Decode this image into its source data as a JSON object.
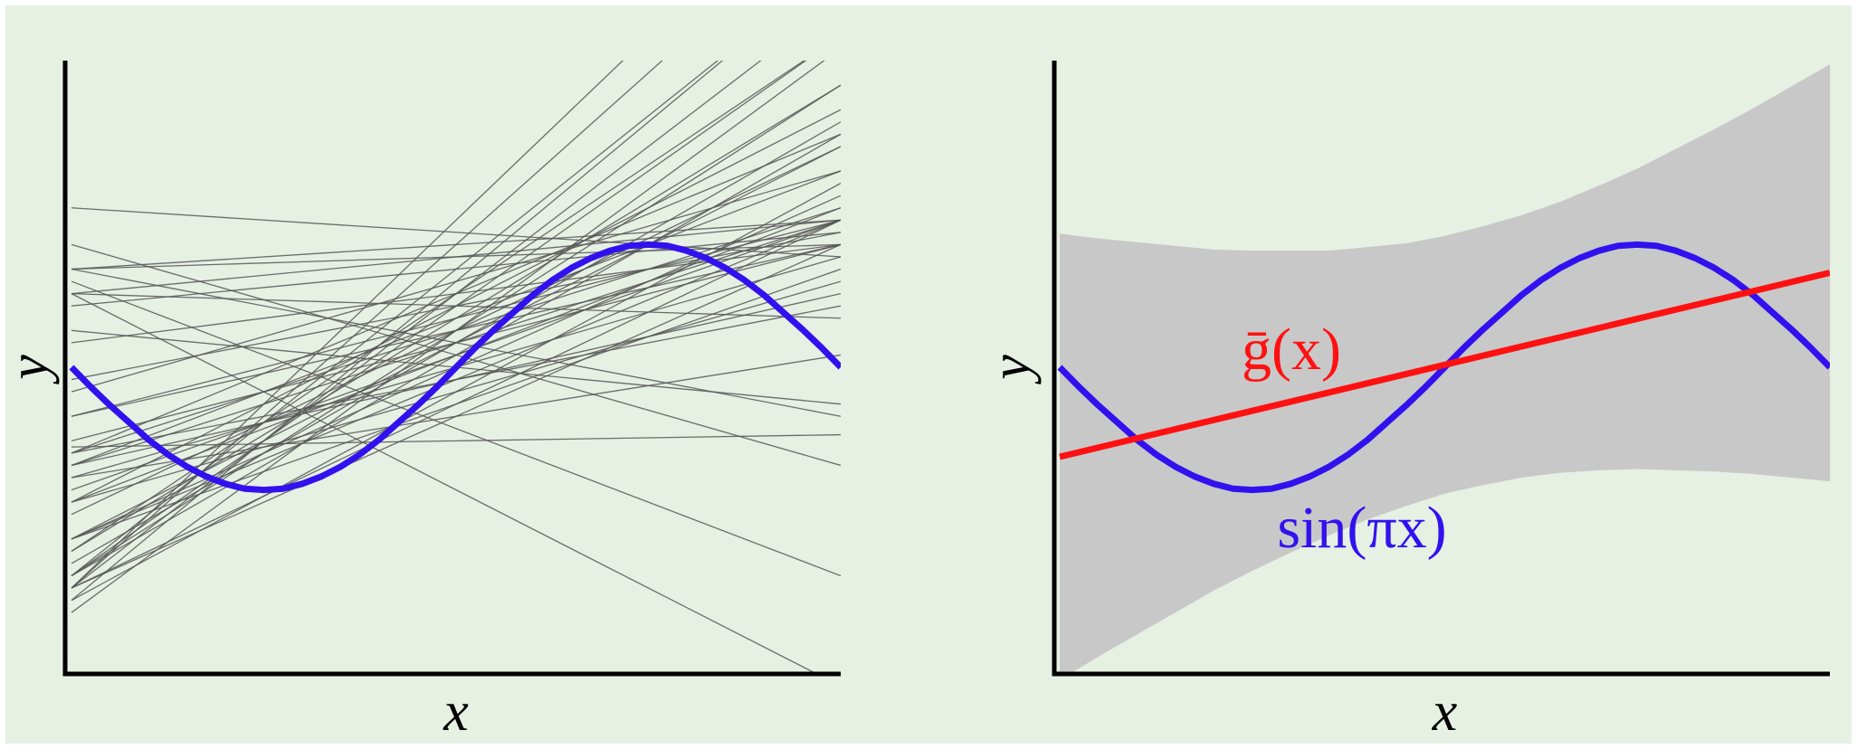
{
  "chart_data": [
    {
      "type": "line",
      "x_label": "x",
      "y_label": "y",
      "xlim": [
        -1,
        1
      ],
      "ylim": [
        -2.5,
        2.5
      ],
      "x": [
        -1,
        -0.95,
        -0.9,
        -0.85,
        -0.8,
        -0.75,
        -0.7,
        -0.65,
        -0.6,
        -0.55,
        -0.5,
        -0.45,
        -0.4,
        -0.35,
        -0.3,
        -0.25,
        -0.2,
        -0.15,
        -0.1,
        -0.05,
        0,
        0.05,
        0.1,
        0.15,
        0.2,
        0.25,
        0.3,
        0.35,
        0.4,
        0.45,
        0.5,
        0.55,
        0.6,
        0.65,
        0.7,
        0.75,
        0.8,
        0.85,
        0.9,
        0.95,
        1
      ],
      "series": [
        {
          "color": "#3311ee",
          "values": [
            0,
            -0.16,
            -0.31,
            -0.45,
            -0.59,
            -0.71,
            -0.81,
            -0.89,
            -0.95,
            -0.99,
            -1,
            -0.99,
            -0.95,
            -0.89,
            -0.81,
            -0.71,
            -0.59,
            -0.45,
            -0.31,
            -0.16,
            0,
            0.16,
            0.31,
            0.45,
            0.59,
            0.71,
            0.81,
            0.89,
            0.95,
            0.99,
            1,
            0.99,
            0.95,
            0.89,
            0.81,
            0.71,
            0.59,
            0.45,
            0.31,
            0.16,
            0
          ]
        }
      ],
      "hypotheses": {
        "color": "#555555",
        "slopes": [
          1.2,
          0.9,
          1.5,
          2.1,
          0.6,
          0.3,
          1.8,
          2.5,
          1.1,
          0.8,
          1.4,
          0.2,
          -0.1,
          1.9,
          2.8,
          1.0,
          0.5,
          1.3,
          1.6,
          0.7,
          -0.6,
          2.2,
          0.4,
          1.7,
          0.9,
          -1.2,
          1.1,
          2.4,
          0.1,
          1.5,
          -0.3,
          0.8,
          2.0,
          1.2,
          0.6,
          3.0,
          -0.9,
          1.3,
          0.05,
          1.8,
          0.7,
          2.6,
          -0.2,
          1.0,
          1.6,
          0.3,
          2.3,
          -1.6,
          0.9,
          1.4
        ],
        "intercepts": [
          0.1,
          -0.2,
          0.3,
          0.6,
          -0.1,
          0.9,
          0.2,
          0.8,
          -0.3,
          0.4,
          0.0,
          1.0,
          0.5,
          0.4,
          1.0,
          0.2,
          -0.4,
          -0.1,
          0.5,
          0.3,
          0.2,
          0.5,
          0.6,
          -0.2,
          0.7,
          -0.5,
          0.1,
          0.6,
          0.9,
          -0.3,
          0.0,
          0.2,
          0.3,
          0.4,
          0.5,
          1.2,
          0.1,
          0.6,
          -0.6,
          0.1,
          -0.1,
          0.7,
          1.1,
          0.3,
          0.2,
          0.8,
          0.3,
          -1.0,
          0.0,
          -0.4
        ]
      }
    },
    {
      "type": "line",
      "x_label": "x",
      "y_label": "y",
      "xlim": [
        -1,
        1
      ],
      "ylim": [
        -2.5,
        2.5
      ],
      "x": [
        -1,
        -0.95,
        -0.9,
        -0.85,
        -0.8,
        -0.75,
        -0.7,
        -0.65,
        -0.6,
        -0.55,
        -0.5,
        -0.45,
        -0.4,
        -0.35,
        -0.3,
        -0.25,
        -0.2,
        -0.15,
        -0.1,
        -0.05,
        0,
        0.05,
        0.1,
        0.15,
        0.2,
        0.25,
        0.3,
        0.35,
        0.4,
        0.45,
        0.5,
        0.55,
        0.6,
        0.65,
        0.7,
        0.75,
        0.8,
        0.85,
        0.9,
        0.95,
        1
      ],
      "series": [
        {
          "color": "#3311ee",
          "values": [
            0,
            -0.16,
            -0.31,
            -0.45,
            -0.59,
            -0.71,
            -0.81,
            -0.89,
            -0.95,
            -0.99,
            -1,
            -0.99,
            -0.95,
            -0.89,
            -0.81,
            -0.71,
            -0.59,
            -0.45,
            -0.31,
            -0.16,
            0,
            0.16,
            0.31,
            0.45,
            0.59,
            0.71,
            0.81,
            0.89,
            0.95,
            0.99,
            1,
            0.99,
            0.95,
            0.89,
            0.81,
            0.71,
            0.59,
            0.45,
            0.31,
            0.16,
            0
          ]
        }
      ],
      "mean_line": {
        "color": "#ff1111",
        "slope": 0.75,
        "intercept": 0.02
      },
      "band": {
        "color": "#c8c8c8",
        "x": [
          -1,
          -0.9,
          -0.8,
          -0.7,
          -0.6,
          -0.5,
          -0.4,
          -0.3,
          -0.2,
          -0.1,
          0,
          0.1,
          0.2,
          0.3,
          0.4,
          0.5,
          0.6,
          0.7,
          0.8,
          0.9,
          1
        ],
        "upper": [
          1.09,
          1.05,
          1.02,
          0.99,
          0.96,
          0.95,
          0.95,
          0.95,
          0.98,
          1.01,
          1.07,
          1.15,
          1.24,
          1.35,
          1.48,
          1.62,
          1.78,
          1.94,
          2.11,
          2.29,
          2.47
        ],
        "lower": [
          -2.55,
          -2.36,
          -2.18,
          -2.0,
          -1.82,
          -1.66,
          -1.51,
          -1.37,
          -1.24,
          -1.13,
          -1.03,
          -0.96,
          -0.9,
          -0.86,
          -0.84,
          -0.83,
          -0.84,
          -0.85,
          -0.87,
          -0.9,
          -0.93
        ]
      },
      "annotations": [
        {
          "text": "ḡ(x)",
          "color": "#ff1111"
        },
        {
          "text": "sin(πx)",
          "color": "#3311ee"
        }
      ]
    }
  ]
}
